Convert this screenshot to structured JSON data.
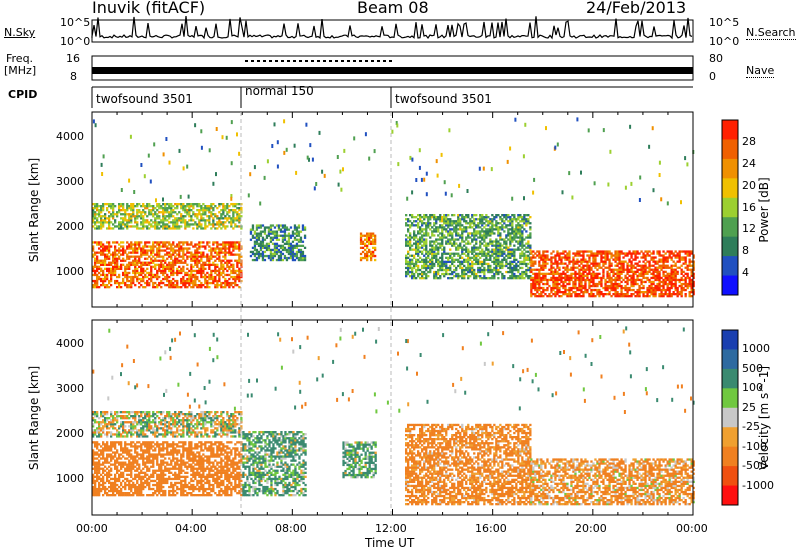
{
  "header": {
    "station": "Inuvik (fitACF)",
    "beam": "Beam 08",
    "date": "24/Feb/2013"
  },
  "top_panels": {
    "nsky_label": "N.Sky",
    "nsky_ticks": [
      "10^5",
      "10^0"
    ],
    "nsearch_label": "N.Search",
    "nsearch_ticks": [
      "10^5",
      "10^0"
    ],
    "freq_label_1": "Freq.",
    "freq_label_2": "[MHz]",
    "freq_ticks": [
      "16",
      "8"
    ],
    "nave_label": "Nave",
    "nave_ticks": [
      "80",
      "0"
    ],
    "cpid_label": "CPID",
    "cpid_segments": [
      {
        "name": "twofsound 3501",
        "start": 0,
        "end": 6
      },
      {
        "name": "normal 150",
        "start": 6,
        "end": 12
      },
      {
        "name": "twofsound 3501",
        "start": 12,
        "end": 24
      }
    ]
  },
  "x_axis": {
    "label": "Time UT",
    "ticks": [
      "00:00",
      "04:00",
      "08:00",
      "12:00",
      "16:00",
      "20:00",
      "00:00"
    ],
    "range_hours": [
      0,
      24
    ]
  },
  "power_panel": {
    "ylabel": "Slant Range [km]",
    "yticks": [
      "4000",
      "3000",
      "2000",
      "1000"
    ],
    "colorbar_label": "Power [dB]",
    "colorbar_ticks": [
      "28",
      "24",
      "20",
      "16",
      "12",
      "8",
      "4"
    ],
    "colors": [
      "#1010ff",
      "#2050c0",
      "#2e7d5a",
      "#4fa050",
      "#9cd030",
      "#f0c000",
      "#f09000",
      "#f06000",
      "#ff2000"
    ]
  },
  "velocity_panel": {
    "ylabel": "Slant Range [km]",
    "yticks": [
      "4000",
      "3000",
      "2000",
      "1000"
    ],
    "colorbar_label": "Velocity [m s^-1]",
    "colorbar_ticks": [
      "1000",
      "500",
      "100",
      "25",
      "-25",
      "-100",
      "-500",
      "-1000"
    ],
    "colors": [
      "#1a3fb0",
      "#2e6aa0",
      "#3a8a70",
      "#70c840",
      "#c8c8c8",
      "#f0a030",
      "#f08020",
      "#f05010",
      "#ff1010"
    ]
  },
  "chart_data": {
    "type": "heatmap",
    "title": "Inuvik (fitACF) Beam 08 24/Feb/2013",
    "xlabel": "Time UT",
    "ylabel": "Slant Range [km]",
    "xlim_hours": [
      0,
      24
    ],
    "ylim_km": [
      180,
      4500
    ],
    "power_scatter_bands": [
      {
        "t0": 0.0,
        "t1": 6.0,
        "r0": 600,
        "r1": 1600,
        "power_db": 26
      },
      {
        "t0": 0.0,
        "t1": 6.0,
        "r0": 1900,
        "r1": 2450,
        "power_db": 16
      },
      {
        "t0": 6.3,
        "t1": 8.5,
        "r0": 1200,
        "r1": 2000,
        "power_db": 10
      },
      {
        "t0": 10.7,
        "t1": 11.3,
        "r0": 1200,
        "r1": 1800,
        "power_db": 24
      },
      {
        "t0": 12.5,
        "t1": 17.5,
        "r0": 800,
        "r1": 2200,
        "power_db": 12
      },
      {
        "t0": 17.5,
        "t1": 24.0,
        "r0": 400,
        "r1": 1400,
        "power_db": 28
      }
    ],
    "velocity_scatter_bands": [
      {
        "t0": 0.0,
        "t1": 6.0,
        "r0": 600,
        "r1": 1800,
        "velocity_ms": -300
      },
      {
        "t0": 0.0,
        "t1": 6.0,
        "r0": 1900,
        "r1": 2450,
        "velocity_ms": 0
      },
      {
        "t0": 6.0,
        "t1": 8.5,
        "r0": 600,
        "r1": 2000,
        "velocity_ms": 150
      },
      {
        "t0": 10.0,
        "t1": 11.3,
        "r0": 1000,
        "r1": 1800,
        "velocity_ms": 150
      },
      {
        "t0": 12.5,
        "t1": 17.5,
        "r0": 400,
        "r1": 2200,
        "velocity_ms": -200
      },
      {
        "t0": 17.5,
        "t1": 24.0,
        "r0": 400,
        "r1": 1400,
        "velocity_ms": -150
      }
    ]
  }
}
